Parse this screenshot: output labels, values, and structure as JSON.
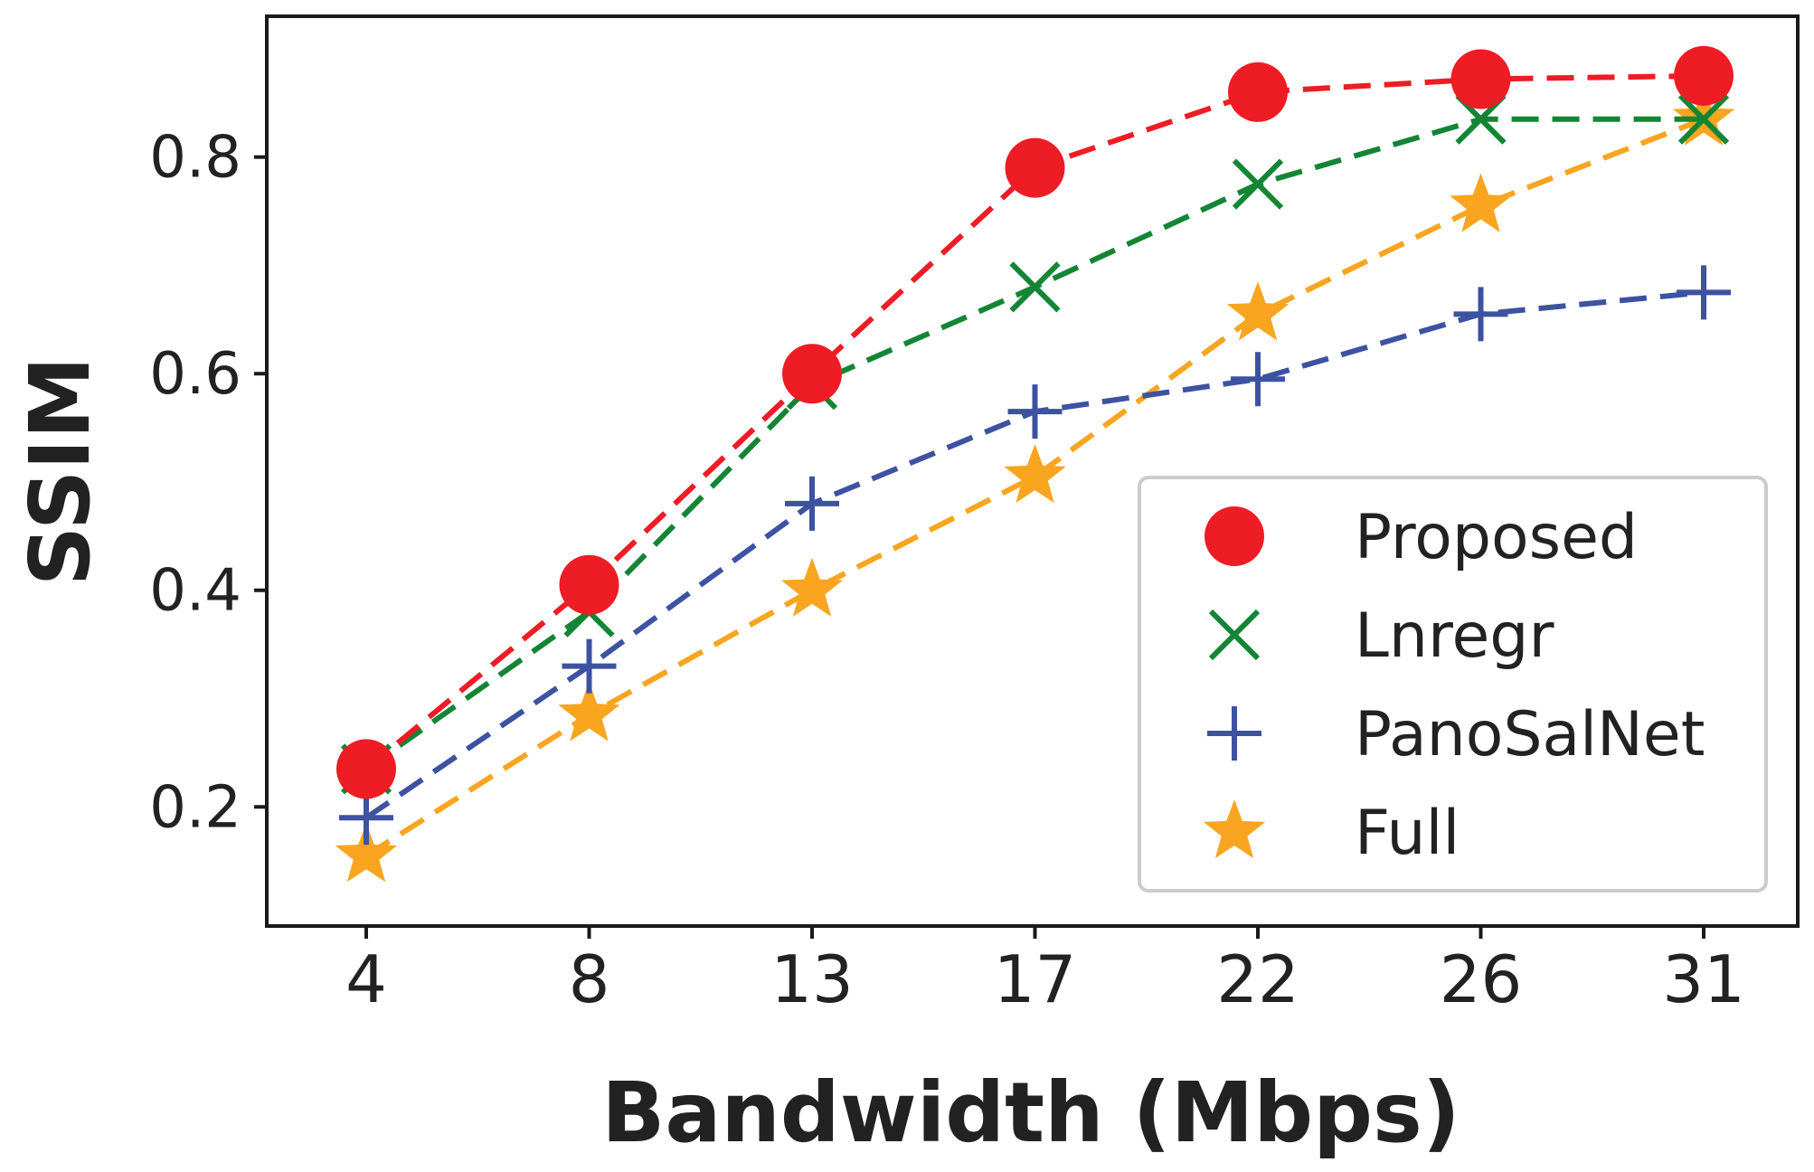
{
  "chart_data": {
    "type": "line",
    "title": "",
    "xlabel": "Bandwidth (Mbps)",
    "ylabel": "SSIM",
    "categories": [
      "4",
      "8",
      "13",
      "17",
      "22",
      "26",
      "31"
    ],
    "y_ticks": [
      "0.2",
      "0.4",
      "0.6",
      "0.8"
    ],
    "y_tick_values": [
      0.2,
      0.4,
      0.6,
      0.8
    ],
    "ylim": [
      0.09,
      0.93
    ],
    "grid": false,
    "legend_position": "lower-right",
    "series": [
      {
        "name": "Proposed",
        "color": "#ee1c25",
        "marker": "circle",
        "values": [
          0.235,
          0.405,
          0.6,
          0.79,
          0.86,
          0.872,
          0.875
        ]
      },
      {
        "name": "Lnregr",
        "color": "#138535",
        "marker": "x",
        "values": [
          0.235,
          0.38,
          0.59,
          0.68,
          0.775,
          0.835,
          0.835
        ]
      },
      {
        "name": "PanoSalNet",
        "color": "#3d52a1",
        "marker": "plus",
        "values": [
          0.19,
          0.33,
          0.48,
          0.565,
          0.595,
          0.655,
          0.675
        ]
      },
      {
        "name": "Full",
        "color": "#f9a520",
        "marker": "star",
        "values": [
          0.155,
          0.285,
          0.4,
          0.505,
          0.655,
          0.755,
          0.835
        ]
      }
    ]
  }
}
